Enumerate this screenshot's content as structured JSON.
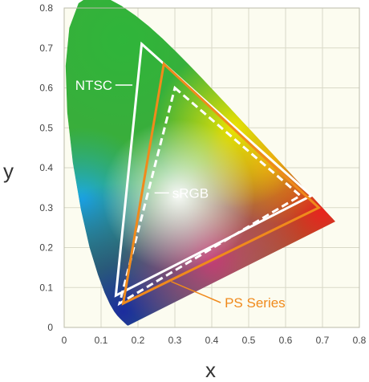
{
  "chart_data": {
    "type": "scatter",
    "title": "",
    "xlabel": "x",
    "ylabel": "y",
    "xlim": [
      0,
      0.8
    ],
    "ylim": [
      0,
      0.8
    ],
    "x_ticks": [
      "0",
      "0.1",
      "0.2",
      "0.3",
      "0.4",
      "0.5",
      "0.6",
      "0.7",
      "0.8"
    ],
    "y_ticks": [
      "0",
      "0.1",
      "0.2",
      "0.3",
      "0.4",
      "0.5",
      "0.6",
      "0.7",
      "0.8"
    ],
    "grid": true,
    "series": [
      {
        "name": "NTSC",
        "color": "#ffffff",
        "dashed": false,
        "vertices": [
          [
            0.21,
            0.71
          ],
          [
            0.67,
            0.33
          ],
          [
            0.14,
            0.08
          ]
        ]
      },
      {
        "name": "sRGB",
        "color": "#ffffff",
        "dashed": true,
        "vertices": [
          [
            0.3,
            0.6
          ],
          [
            0.64,
            0.33
          ],
          [
            0.15,
            0.06
          ]
        ]
      },
      {
        "name": "PS Series",
        "color": "#f08a1c",
        "dashed": false,
        "vertices": [
          [
            0.27,
            0.66
          ],
          [
            0.69,
            0.3
          ],
          [
            0.16,
            0.06
          ]
        ]
      }
    ],
    "spectral_locus": [
      [
        0.1741,
        0.005
      ],
      [
        0.1738,
        0.0049
      ],
      [
        0.1736,
        0.0049
      ],
      [
        0.1733,
        0.0048
      ],
      [
        0.173,
        0.0048
      ],
      [
        0.1726,
        0.0048
      ],
      [
        0.1721,
        0.0048
      ],
      [
        0.1714,
        0.0051
      ],
      [
        0.1703,
        0.0058
      ],
      [
        0.1689,
        0.0069
      ],
      [
        0.1669,
        0.0086
      ],
      [
        0.1644,
        0.0109
      ],
      [
        0.1611,
        0.0138
      ],
      [
        0.1566,
        0.0177
      ],
      [
        0.151,
        0.0227
      ],
      [
        0.144,
        0.0297
      ],
      [
        0.1355,
        0.0399
      ],
      [
        0.1241,
        0.0578
      ],
      [
        0.1096,
        0.0868
      ],
      [
        0.0913,
        0.1327
      ],
      [
        0.0687,
        0.2007
      ],
      [
        0.0454,
        0.295
      ],
      [
        0.0235,
        0.4127
      ],
      [
        0.0082,
        0.5384
      ],
      [
        0.0039,
        0.6548
      ],
      [
        0.0139,
        0.7502
      ],
      [
        0.0389,
        0.812
      ],
      [
        0.0743,
        0.8338
      ],
      [
        0.1142,
        0.8262
      ],
      [
        0.1547,
        0.8059
      ],
      [
        0.1929,
        0.7816
      ],
      [
        0.2296,
        0.7543
      ],
      [
        0.2658,
        0.7243
      ],
      [
        0.3016,
        0.6923
      ],
      [
        0.3373,
        0.6589
      ],
      [
        0.3731,
        0.6245
      ],
      [
        0.4087,
        0.5896
      ],
      [
        0.4441,
        0.5547
      ],
      [
        0.4788,
        0.5202
      ],
      [
        0.5125,
        0.4866
      ],
      [
        0.5448,
        0.4544
      ],
      [
        0.5752,
        0.4242
      ],
      [
        0.6029,
        0.3965
      ],
      [
        0.627,
        0.3725
      ],
      [
        0.6482,
        0.3514
      ],
      [
        0.6658,
        0.334
      ],
      [
        0.6801,
        0.3197
      ],
      [
        0.6915,
        0.3083
      ],
      [
        0.7006,
        0.2993
      ],
      [
        0.7079,
        0.292
      ],
      [
        0.714,
        0.2859
      ],
      [
        0.719,
        0.2809
      ],
      [
        0.723,
        0.277
      ],
      [
        0.726,
        0.274
      ],
      [
        0.7283,
        0.2717
      ],
      [
        0.73,
        0.27
      ],
      [
        0.7311,
        0.2689
      ],
      [
        0.732,
        0.268
      ],
      [
        0.7327,
        0.2673
      ],
      [
        0.7334,
        0.2666
      ],
      [
        0.734,
        0.266
      ],
      [
        0.7344,
        0.2656
      ],
      [
        0.7346,
        0.2654
      ],
      [
        0.7347,
        0.2653
      ]
    ],
    "annotations": [
      {
        "text": "NTSC",
        "color": "#ffffff"
      },
      {
        "text": "sRGB",
        "color": "#ffffff"
      },
      {
        "text": "PS Series",
        "color": "#f08a1c"
      }
    ]
  }
}
